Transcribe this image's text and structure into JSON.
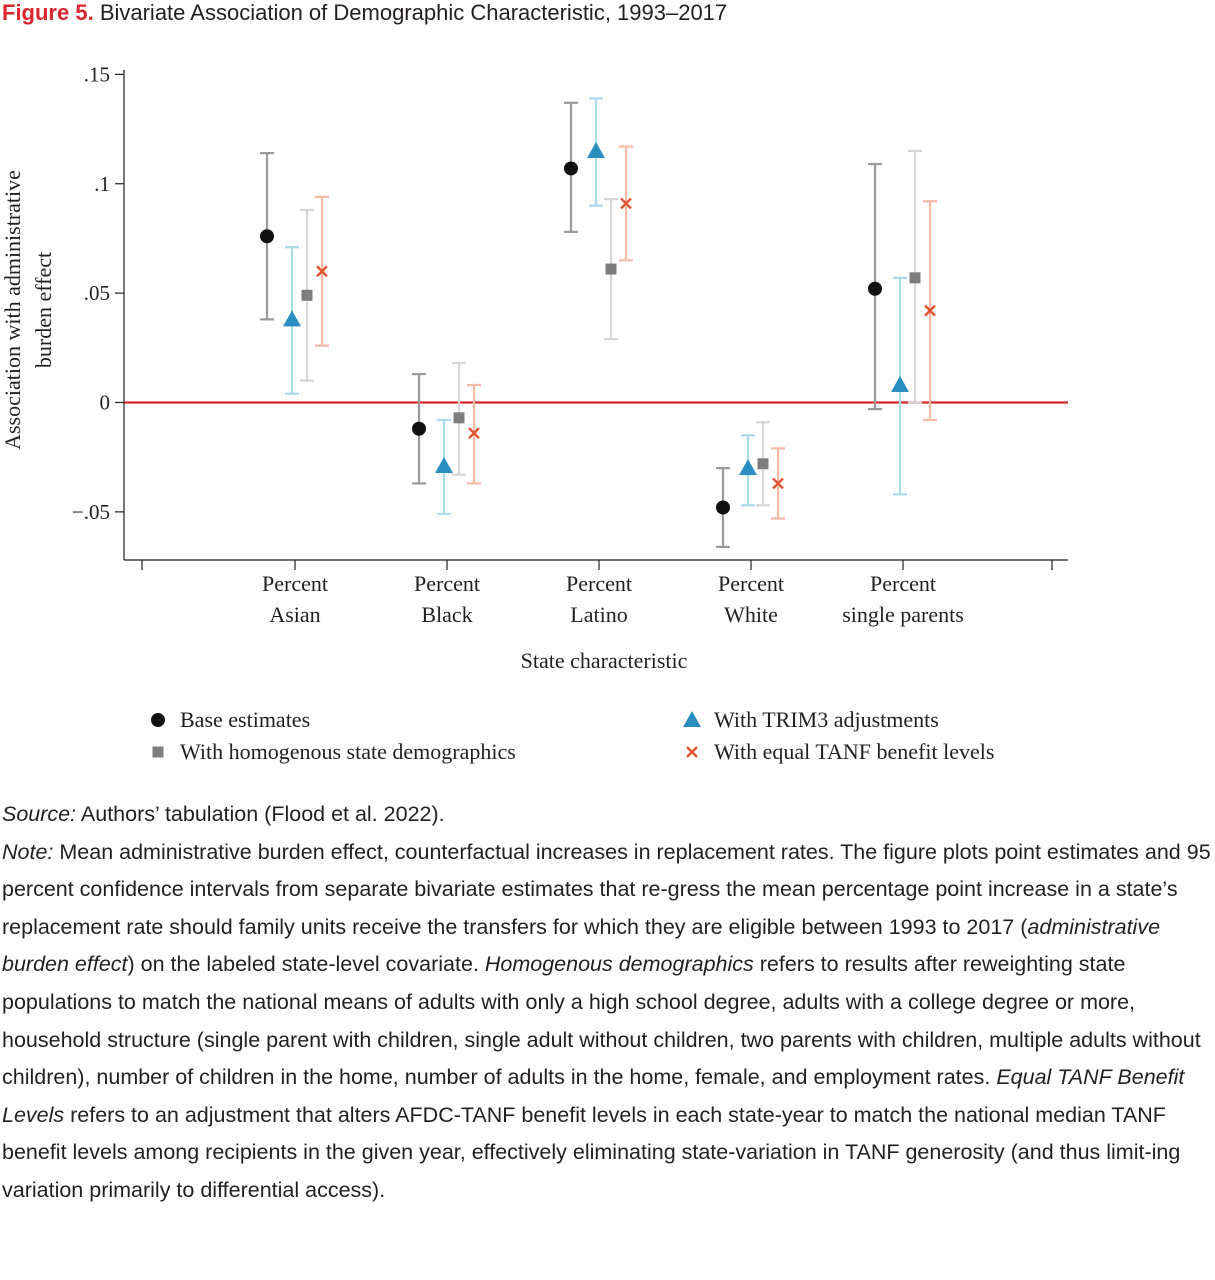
{
  "figure": {
    "number": "Figure 5.",
    "title": "Bivariate Association of Demographic Characteristic, 1993–2017"
  },
  "chart_data": {
    "type": "scatter",
    "subtype": "point estimates with 95% confidence intervals",
    "xlabel": "State characteristic",
    "ylabel_lines": [
      "Association with administrative",
      "burden effect"
    ],
    "categories": [
      [
        "Percent",
        "Asian"
      ],
      [
        "Percent",
        "Black"
      ],
      [
        "Percent",
        "Latino"
      ],
      [
        "Percent",
        "White"
      ],
      [
        "Percent",
        "single parents"
      ]
    ],
    "ylim": [
      -0.072,
      0.152
    ],
    "yticks": [
      -0.05,
      0,
      0.05,
      0.1,
      0.15
    ],
    "ytick_labels": [
      "−.05",
      "0",
      ".05",
      ".1",
      ".15"
    ],
    "reference_line": {
      "y": 0,
      "color": "#d8262d"
    },
    "legend_position": "bottom",
    "series": [
      {
        "name": "Base estimates",
        "marker": "circle",
        "color": "#111111",
        "ci_color": "#9a9a9a",
        "values": [
          0.076,
          -0.012,
          0.107,
          -0.048,
          0.052
        ],
        "ci_low": [
          0.038,
          -0.037,
          0.078,
          -0.066,
          -0.003
        ],
        "ci_high": [
          0.114,
          0.013,
          0.137,
          -0.03,
          0.109
        ]
      },
      {
        "name": "With TRIM3 adjustments",
        "marker": "triangle",
        "color": "#2a8fc0",
        "ci_color": "#a9dbe8",
        "values": [
          0.038,
          -0.029,
          0.115,
          -0.03,
          0.008
        ],
        "ci_low": [
          0.004,
          -0.051,
          0.09,
          -0.047,
          -0.042
        ],
        "ci_high": [
          0.071,
          -0.008,
          0.139,
          -0.015,
          0.057
        ]
      },
      {
        "name": "With homogenous state demographics",
        "marker": "square",
        "color": "#7d7d7d",
        "ci_color": "#d6d6d6",
        "values": [
          0.049,
          -0.007,
          0.061,
          -0.028,
          0.057
        ],
        "ci_low": [
          0.01,
          -0.033,
          0.029,
          -0.047,
          0.0
        ],
        "ci_high": [
          0.088,
          0.018,
          0.093,
          -0.009,
          0.115
        ]
      },
      {
        "name": "With equal TANF benefit levels",
        "marker": "x",
        "color": "#e2532f",
        "ci_color": "#f6b9a4",
        "values": [
          0.06,
          -0.014,
          0.091,
          -0.037,
          0.042
        ],
        "ci_low": [
          0.026,
          -0.037,
          0.065,
          -0.053,
          -0.008
        ],
        "ci_high": [
          0.094,
          0.008,
          0.117,
          -0.021,
          0.092
        ]
      }
    ]
  },
  "caption": {
    "source_label": "Source:",
    "source_text": " Authors’ tabulation (Flood et al. 2022).",
    "note_label": "Note:",
    "note_1": " Mean administrative burden effect, counterfactual increases in replacement rates. The figure plots point estimates and 95 percent confidence intervals from separate bivariate estimates that re-gress the mean percentage point increase in a state’s replacement rate should family units receive the transfers for which they are eligible between 1993 to 2017 (",
    "note_em_1": "administrative burden effect",
    "note_2": ") on the labeled state-level covariate. ",
    "note_em_2": "Homogenous demographics",
    "note_3": " refers to results after reweighting state populations to match the national means of adults with only a high school degree, adults with a college degree or more, household structure (single parent with children, single adult without children, two parents with children, multiple adults without children), number of children in the home, number of adults in the home, female, and employment rates. ",
    "note_em_3": "Equal TANF Benefit Levels",
    "note_4": " refers to an adjustment that alters AFDC-TANF benefit levels in each state-year to match the national median TANF benefit levels among recipients in the given year, effectively eliminating state-variation in TANF generosity (and thus limit-ing variation primarily to differential access)."
  }
}
